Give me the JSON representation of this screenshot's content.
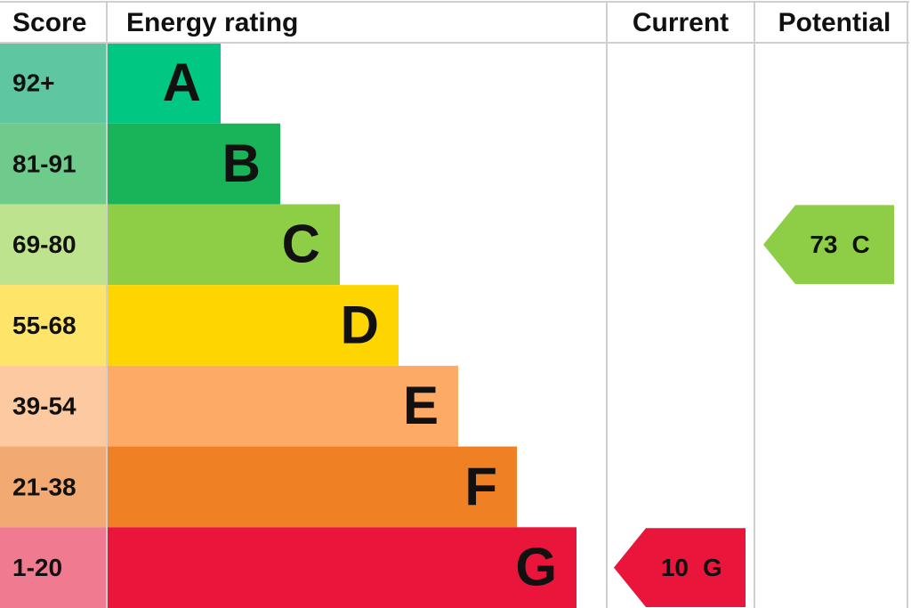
{
  "header": {
    "score": "Score",
    "rating": "Energy rating",
    "current": "Current",
    "potential": "Potential"
  },
  "bands": [
    {
      "score": "92+",
      "letter": "A",
      "bar_color": "#00c781",
      "score_color": "#5fc6a2"
    },
    {
      "score": "81-91",
      "letter": "B",
      "bar_color": "#19b459",
      "score_color": "#6fcb8b"
    },
    {
      "score": "69-80",
      "letter": "C",
      "bar_color": "#8dce46",
      "score_color": "#bde38e"
    },
    {
      "score": "55-68",
      "letter": "D",
      "bar_color": "#ffd500",
      "score_color": "#ffe46a"
    },
    {
      "score": "39-54",
      "letter": "E",
      "bar_color": "#fcaa65",
      "score_color": "#fdc9a0"
    },
    {
      "score": "21-38",
      "letter": "F",
      "bar_color": "#ef8023",
      "score_color": "#f3aa72"
    },
    {
      "score": "1-20",
      "letter": "G",
      "bar_color": "#e9153b",
      "score_color": "#f07b90"
    }
  ],
  "current": {
    "score": 10,
    "letter": "G"
  },
  "potential": {
    "score": 73,
    "letter": "C"
  }
}
